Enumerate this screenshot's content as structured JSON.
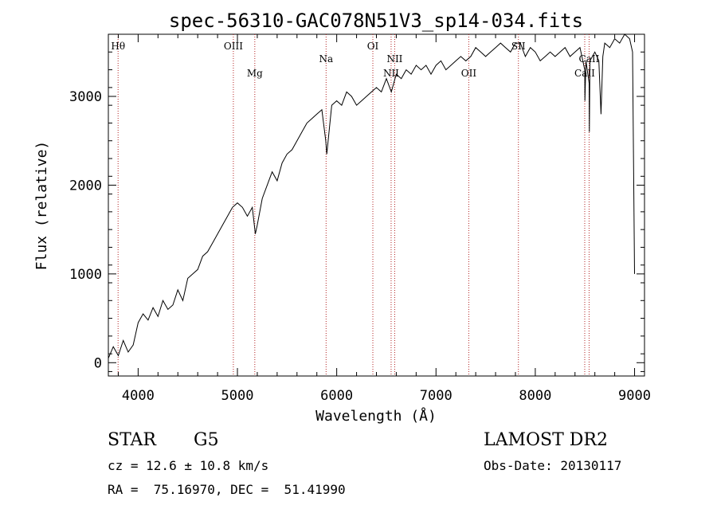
{
  "chart_data": {
    "type": "line",
    "title": "spec-56310-GAC078N51V3_sp14-034.fits",
    "xlabel": "Wavelength (Å)",
    "ylabel": "Flux (relative)",
    "xlim": [
      3700,
      9100
    ],
    "ylim": [
      -150,
      3700
    ],
    "xticks": [
      4000,
      5000,
      6000,
      7000,
      8000,
      9000
    ],
    "yticks": [
      0,
      1000,
      2000,
      3000
    ],
    "series": [
      {
        "name": "flux",
        "points": [
          [
            3700,
            50
          ],
          [
            3750,
            180
          ],
          [
            3800,
            80
          ],
          [
            3850,
            250
          ],
          [
            3900,
            120
          ],
          [
            3950,
            200
          ],
          [
            4000,
            450
          ],
          [
            4050,
            550
          ],
          [
            4100,
            480
          ],
          [
            4150,
            620
          ],
          [
            4200,
            520
          ],
          [
            4250,
            700
          ],
          [
            4300,
            600
          ],
          [
            4350,
            650
          ],
          [
            4400,
            820
          ],
          [
            4450,
            700
          ],
          [
            4500,
            950
          ],
          [
            4550,
            1000
          ],
          [
            4600,
            1050
          ],
          [
            4650,
            1200
          ],
          [
            4700,
            1250
          ],
          [
            4750,
            1350
          ],
          [
            4800,
            1450
          ],
          [
            4850,
            1550
          ],
          [
            4900,
            1650
          ],
          [
            4950,
            1750
          ],
          [
            5000,
            1800
          ],
          [
            5050,
            1750
          ],
          [
            5100,
            1650
          ],
          [
            5150,
            1750
          ],
          [
            5180,
            1450
          ],
          [
            5200,
            1550
          ],
          [
            5250,
            1850
          ],
          [
            5300,
            2000
          ],
          [
            5350,
            2150
          ],
          [
            5400,
            2050
          ],
          [
            5450,
            2250
          ],
          [
            5500,
            2350
          ],
          [
            5550,
            2400
          ],
          [
            5600,
            2500
          ],
          [
            5650,
            2600
          ],
          [
            5700,
            2700
          ],
          [
            5750,
            2750
          ],
          [
            5800,
            2800
          ],
          [
            5850,
            2850
          ],
          [
            5890,
            2500
          ],
          [
            5900,
            2350
          ],
          [
            5950,
            2900
          ],
          [
            6000,
            2950
          ],
          [
            6050,
            2900
          ],
          [
            6100,
            3050
          ],
          [
            6150,
            3000
          ],
          [
            6200,
            2900
          ],
          [
            6250,
            2950
          ],
          [
            6300,
            3000
          ],
          [
            6350,
            3050
          ],
          [
            6400,
            3100
          ],
          [
            6450,
            3050
          ],
          [
            6500,
            3200
          ],
          [
            6550,
            3050
          ],
          [
            6600,
            3250
          ],
          [
            6650,
            3200
          ],
          [
            6700,
            3300
          ],
          [
            6750,
            3250
          ],
          [
            6800,
            3350
          ],
          [
            6850,
            3300
          ],
          [
            6900,
            3350
          ],
          [
            6950,
            3250
          ],
          [
            7000,
            3350
          ],
          [
            7050,
            3400
          ],
          [
            7100,
            3300
          ],
          [
            7150,
            3350
          ],
          [
            7200,
            3400
          ],
          [
            7250,
            3450
          ],
          [
            7300,
            3400
          ],
          [
            7350,
            3450
          ],
          [
            7400,
            3550
          ],
          [
            7450,
            3500
          ],
          [
            7500,
            3450
          ],
          [
            7550,
            3500
          ],
          [
            7600,
            3550
          ],
          [
            7650,
            3600
          ],
          [
            7700,
            3550
          ],
          [
            7750,
            3500
          ],
          [
            7800,
            3600
          ],
          [
            7850,
            3600
          ],
          [
            7900,
            3450
          ],
          [
            7950,
            3550
          ],
          [
            8000,
            3500
          ],
          [
            8050,
            3400
          ],
          [
            8100,
            3450
          ],
          [
            8150,
            3500
          ],
          [
            8200,
            3450
          ],
          [
            8250,
            3500
          ],
          [
            8300,
            3550
          ],
          [
            8350,
            3450
          ],
          [
            8400,
            3500
          ],
          [
            8450,
            3550
          ],
          [
            8498,
            3300
          ],
          [
            8500,
            2950
          ],
          [
            8510,
            3400
          ],
          [
            8542,
            3150
          ],
          [
            8545,
            2600
          ],
          [
            8550,
            3400
          ],
          [
            8600,
            3500
          ],
          [
            8640,
            3400
          ],
          [
            8662,
            2800
          ],
          [
            8680,
            3450
          ],
          [
            8700,
            3600
          ],
          [
            8750,
            3550
          ],
          [
            8800,
            3650
          ],
          [
            8850,
            3600
          ],
          [
            8900,
            3700
          ],
          [
            8950,
            3650
          ],
          [
            8980,
            3500
          ],
          [
            9000,
            1000
          ]
        ]
      }
    ],
    "lines": [
      {
        "label": "Hθ",
        "x": 3798,
        "label_pos": "top"
      },
      {
        "label": "OIII",
        "x": 4959,
        "label_pos": "top"
      },
      {
        "label": "Mg",
        "x": 5175,
        "label_pos": "mid"
      },
      {
        "label": "Na",
        "x": 5893,
        "label_pos": "top2"
      },
      {
        "label": "OI",
        "x": 6364,
        "label_pos": "top"
      },
      {
        "label": "NII",
        "x": 6548,
        "label_pos": "mid"
      },
      {
        "label": "NII",
        "x": 6584,
        "label_pos": "top2"
      },
      {
        "label": "OII",
        "x": 7330,
        "label_pos": "mid"
      },
      {
        "label": "SII",
        "x": 7830,
        "label_pos": "top"
      },
      {
        "label": "CaII",
        "x": 8498,
        "label_pos": "mid"
      },
      {
        "label": "CaII",
        "x": 8542,
        "label_pos": "top2"
      }
    ]
  },
  "info": {
    "object_class": "STAR",
    "subclass": "G5",
    "survey": "LAMOST DR2",
    "cz": "cz = 12.6 ± 10.8 km/s",
    "obs_date": "Obs-Date: 20130117",
    "coords": "RA =  75.16970, DEC =  51.41990"
  }
}
